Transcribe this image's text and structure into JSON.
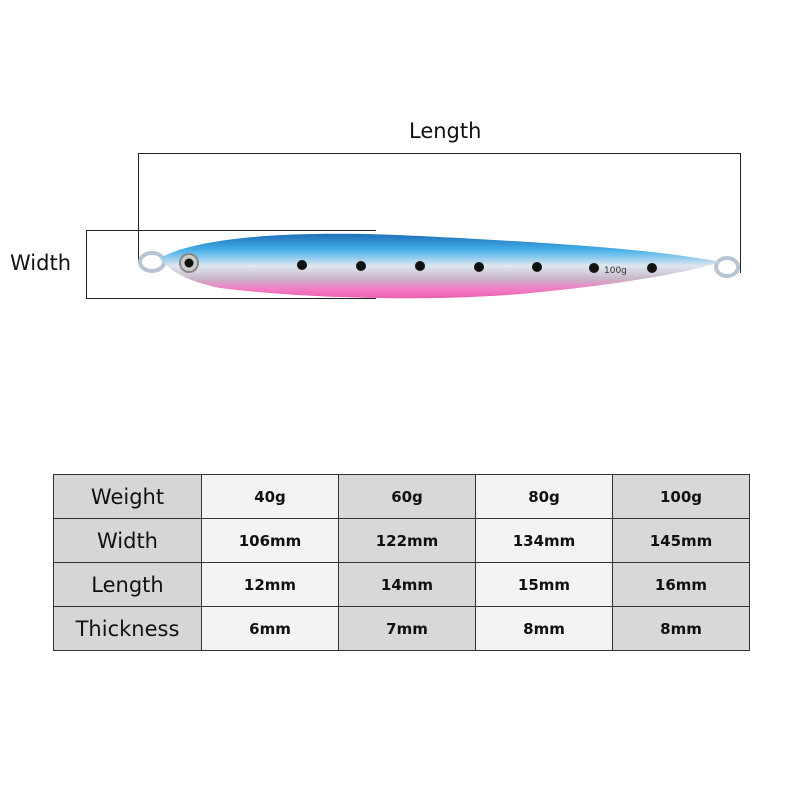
{
  "diagram": {
    "length_label": "Length",
    "width_label": "Width",
    "lure_marking": "100g",
    "colors": {
      "back": "#2e8fd6",
      "belly": "#f07ac0",
      "side": "#d8e4ee"
    }
  },
  "table": {
    "rows": [
      {
        "header": "Weight",
        "values": [
          "40g",
          "60g",
          "80g",
          "100g"
        ]
      },
      {
        "header": "Width",
        "values": [
          "106mm",
          "122mm",
          "134mm",
          "145mm"
        ]
      },
      {
        "header": "Length",
        "values": [
          "12mm",
          "14mm",
          "15mm",
          "16mm"
        ]
      },
      {
        "header": "Thickness",
        "values": [
          "6mm",
          "7mm",
          "8mm",
          "8mm"
        ]
      }
    ]
  }
}
